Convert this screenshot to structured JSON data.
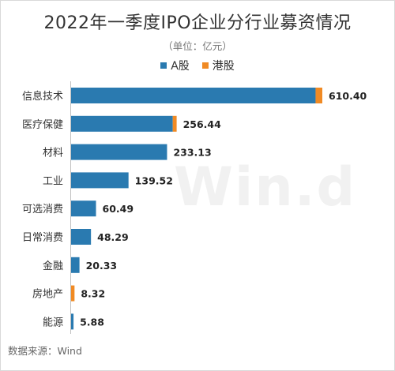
{
  "chart_data": {
    "type": "bar",
    "orientation": "horizontal",
    "stacked": true,
    "title": "2022年一季度IPO企业分行业募资情况",
    "subtitle": "（单位：亿元）",
    "categories": [
      "信息技术",
      "医疗保健",
      "材料",
      "工业",
      "可选消费",
      "日常消费",
      "金融",
      "房地产",
      "能源"
    ],
    "series": [
      {
        "name": "A股",
        "color": "#2a7ab0",
        "values": [
          594.0,
          247.0,
          233.13,
          139.52,
          60.49,
          48.29,
          20.33,
          0,
          5.88
        ]
      },
      {
        "name": "港股",
        "color": "#f08a24",
        "values": [
          16.4,
          9.44,
          0,
          0,
          0,
          0,
          0,
          8.32,
          0
        ]
      }
    ],
    "totals": [
      "610.40",
      "256.44",
      "233.13",
      "139.52",
      "60.49",
      "48.29",
      "20.33",
      "8.32",
      "5.88"
    ],
    "xlim": [
      0,
      610.4
    ],
    "legend_position": "top-center",
    "grid": false
  },
  "watermark": "Win.d",
  "source": "数据来源：Wind"
}
